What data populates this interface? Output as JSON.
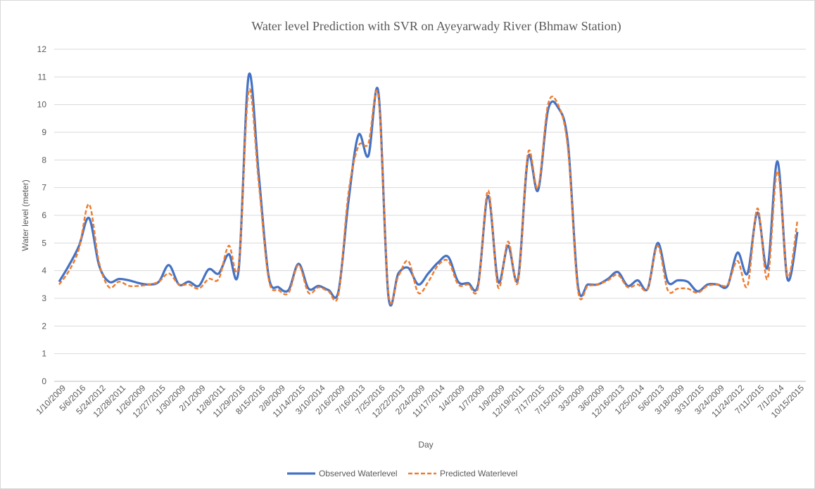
{
  "chart_data": {
    "type": "line",
    "title": "Water level Prediction with SVR on Ayeyarwady River (Bhmaw Station)",
    "x_label": "Day",
    "y_label": "Water level (meter)",
    "categories": [
      "1/10/2009",
      null,
      "5/6/2016",
      null,
      "5/24/2012",
      null,
      "12/28/2011",
      null,
      "1/26/2009",
      null,
      "12/27/2015",
      null,
      "1/30/2009",
      null,
      "2/1/2009",
      null,
      "12/8/2011",
      null,
      "11/29/2016",
      null,
      "8/15/2016",
      null,
      "2/8/2009",
      null,
      "11/14/2015",
      null,
      "3/10/2014",
      null,
      "2/16/2009",
      null,
      "7/16/2013",
      null,
      "7/25/2016",
      null,
      "12/22/2013",
      null,
      "2/24/2009",
      null,
      "11/17/2014",
      null,
      "1/4/2009",
      null,
      "1/7/2009",
      null,
      "1/9/2009",
      null,
      "12/19/2011",
      null,
      "7/17/2015",
      null,
      "7/15/2016",
      null,
      "3/3/2009",
      null,
      "3/6/2009",
      null,
      "12/16/2013",
      null,
      "1/25/2014",
      null,
      "5/6/2013",
      null,
      "3/18/2009",
      null,
      "3/31/2015",
      null,
      "3/24/2009",
      null,
      "11/24/2012",
      null,
      "7/11/2015",
      null,
      "7/1/2014",
      null,
      "10/15/2015"
    ],
    "series": [
      {
        "name": "Observed Waterlevel",
        "color": "#4472c4",
        "dashed": false,
        "values": [
          3.6,
          4.2,
          4.9,
          5.9,
          4.2,
          3.6,
          3.7,
          3.65,
          3.55,
          3.5,
          3.6,
          4.2,
          3.5,
          3.6,
          3.45,
          4.05,
          3.9,
          4.6,
          4.05,
          11.05,
          7.5,
          3.8,
          3.4,
          3.3,
          4.25,
          3.35,
          3.45,
          3.3,
          3.25,
          6.5,
          8.9,
          8.15,
          10.45,
          3.1,
          3.9,
          4.1,
          3.5,
          3.9,
          4.3,
          4.5,
          3.6,
          3.55,
          3.5,
          6.7,
          3.6,
          4.9,
          3.7,
          8.1,
          6.9,
          9.8,
          9.9,
          8.6,
          3.45,
          3.5,
          3.5,
          3.7,
          3.95,
          3.45,
          3.65,
          3.35,
          5.0,
          3.6,
          3.65,
          3.6,
          3.25,
          3.5,
          3.5,
          3.45,
          4.65,
          3.9,
          6.1,
          4.1,
          7.95,
          3.7,
          5.4
        ]
      },
      {
        "name": "Predicted Waterlevel",
        "color": "#ed7d31",
        "dashed": true,
        "values": [
          3.5,
          4.0,
          4.8,
          6.4,
          4.3,
          3.4,
          3.6,
          3.45,
          3.45,
          3.5,
          3.6,
          3.9,
          3.5,
          3.5,
          3.35,
          3.7,
          3.7,
          4.9,
          4.2,
          10.5,
          7.2,
          3.7,
          3.3,
          3.2,
          4.2,
          3.2,
          3.4,
          3.25,
          3.15,
          6.8,
          8.5,
          8.6,
          10.3,
          3.2,
          3.8,
          4.35,
          3.2,
          3.6,
          4.2,
          4.35,
          3.5,
          3.5,
          3.4,
          6.9,
          3.4,
          5.05,
          3.6,
          8.25,
          7.0,
          10.0,
          10.0,
          8.4,
          3.3,
          3.45,
          3.5,
          3.65,
          3.85,
          3.4,
          3.5,
          3.35,
          4.9,
          3.3,
          3.35,
          3.35,
          3.2,
          3.45,
          3.5,
          3.5,
          4.35,
          3.45,
          6.25,
          3.7,
          7.6,
          3.8,
          5.8
        ]
      }
    ],
    "ylim": [
      0,
      12
    ],
    "yticks": [
      0,
      1,
      2,
      3,
      4,
      5,
      6,
      7,
      8,
      9,
      10,
      11,
      12
    ],
    "grid": true,
    "smooth": true,
    "legend": "bottom"
  }
}
